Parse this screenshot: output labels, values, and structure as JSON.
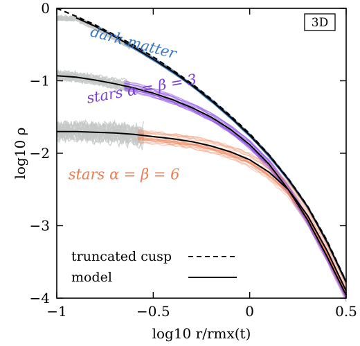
{
  "chart_data": {
    "type": "line",
    "xlabel": "log10 r/rmx(t)",
    "ylabel": "log10 ρ",
    "xlim": [
      -1,
      0.5
    ],
    "ylim": [
      -4,
      0
    ],
    "x_ticks": [
      -1,
      -0.5,
      0,
      0.5
    ],
    "x_tick_labels": [
      "−1",
      "−0.5",
      "0",
      "0.5"
    ],
    "y_ticks": [
      0,
      -1,
      -2,
      -3,
      -4
    ],
    "y_tick_labels": [
      "0",
      "−1",
      "−2",
      "−3",
      "−4"
    ],
    "grid": false,
    "tag": "3D",
    "annotations": [
      {
        "text": "dark matter",
        "color": "#3a78c0"
      },
      {
        "text": "stars α = β = 3",
        "color": "#7b3fd6"
      },
      {
        "text": "stars α = β = 6",
        "color": "#f07a50"
      }
    ],
    "legend": {
      "position": "bottom-left",
      "entries": [
        {
          "label": "truncated cusp",
          "style": "dashed"
        },
        {
          "label": "model",
          "style": "solid"
        }
      ]
    },
    "colors": {
      "dark_matter": "#3a78c0",
      "stars3": "#8a4be0",
      "stars6": "#f08a60",
      "scatter": "#c4c8c6",
      "model": "#000000"
    },
    "series": [
      {
        "name": "truncated cusp",
        "style": "dashed",
        "x": [
          -1.0,
          -0.9,
          -0.8,
          -0.7,
          -0.6,
          -0.5,
          -0.4,
          -0.3,
          -0.2,
          -0.1,
          0.0,
          0.1,
          0.2,
          0.3,
          0.4,
          0.5
        ],
        "y": [
          0.0,
          -0.11,
          -0.23,
          -0.37,
          -0.51,
          -0.67,
          -0.85,
          -1.04,
          -1.25,
          -1.48,
          -1.73,
          -2.02,
          -2.35,
          -2.73,
          -3.2,
          -3.77
        ]
      },
      {
        "name": "model dark matter",
        "style": "solid",
        "x": [
          -0.9,
          -0.8,
          -0.7,
          -0.6,
          -0.5,
          -0.4,
          -0.3,
          -0.2,
          -0.1,
          0.0,
          0.1,
          0.2,
          0.3,
          0.4,
          0.5
        ],
        "y": [
          -0.13,
          -0.25,
          -0.39,
          -0.54,
          -0.7,
          -0.87,
          -1.06,
          -1.27,
          -1.5,
          -1.75,
          -2.03,
          -2.36,
          -2.74,
          -3.22,
          -3.78
        ]
      },
      {
        "name": "model stars α = β = 3",
        "style": "solid",
        "x": [
          -1.0,
          -0.9,
          -0.8,
          -0.7,
          -0.6,
          -0.5,
          -0.4,
          -0.3,
          -0.2,
          -0.1,
          0.0,
          0.1,
          0.2,
          0.3,
          0.4,
          0.5
        ],
        "y": [
          -0.93,
          -0.95,
          -0.99,
          -1.04,
          -1.1,
          -1.17,
          -1.26,
          -1.37,
          -1.5,
          -1.67,
          -1.88,
          -2.15,
          -2.5,
          -2.92,
          -3.42,
          -3.96
        ]
      },
      {
        "name": "model stars α = β = 6",
        "style": "solid",
        "x": [
          -1.0,
          -0.9,
          -0.8,
          -0.7,
          -0.6,
          -0.5,
          -0.4,
          -0.3,
          -0.2,
          -0.1,
          0.0,
          0.1,
          0.2,
          0.3,
          0.4,
          0.5
        ],
        "y": [
          -1.7,
          -1.7,
          -1.71,
          -1.72,
          -1.74,
          -1.77,
          -1.8,
          -1.84,
          -1.9,
          -1.98,
          -2.09,
          -2.26,
          -2.5,
          -2.86,
          -3.34,
          -3.9
        ]
      }
    ]
  }
}
